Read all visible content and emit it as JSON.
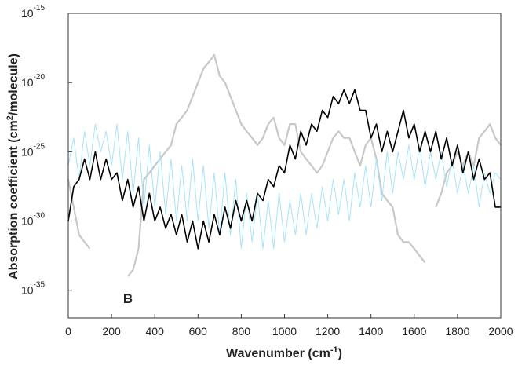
{
  "chart_data": {
    "type": "line",
    "xlabel": [
      "Wavenumber (cm",
      "-1",
      ")"
    ],
    "ylabel": [
      "Absorption coefficient (cm",
      "2",
      "/molecule)"
    ],
    "annotation": "B",
    "log_y": true,
    "xlim": [
      0,
      2000
    ],
    "ylim": [
      1e-37,
      1e-15
    ],
    "xticks": [
      0,
      200,
      400,
      600,
      800,
      1000,
      1200,
      1400,
      1600,
      1800,
      2000
    ],
    "yticks": [
      {
        "value": 1e-15,
        "label": "10",
        "exponent": "-15"
      },
      {
        "value": 1e-20,
        "label": "10",
        "exponent": "-20"
      },
      {
        "value": 1e-25,
        "label": "10",
        "exponent": "-25"
      },
      {
        "value": 1e-30,
        "label": "10",
        "exponent": "-30"
      },
      {
        "value": 1e-35,
        "label": "10",
        "exponent": "-35"
      }
    ],
    "x": [
      0,
      25,
      50,
      75,
      100,
      125,
      150,
      175,
      200,
      225,
      250,
      275,
      300,
      325,
      350,
      375,
      400,
      425,
      450,
      475,
      500,
      525,
      550,
      575,
      600,
      625,
      650,
      675,
      700,
      725,
      750,
      775,
      800,
      825,
      850,
      875,
      900,
      925,
      950,
      975,
      1000,
      1025,
      1050,
      1075,
      1100,
      1125,
      1150,
      1175,
      1200,
      1225,
      1250,
      1275,
      1300,
      1325,
      1350,
      1375,
      1400,
      1425,
      1450,
      1475,
      1500,
      1525,
      1550,
      1575,
      1600,
      1625,
      1650,
      1675,
      1700,
      1725,
      1750,
      1775,
      1800,
      1825,
      1850,
      1875,
      1900,
      1925,
      1950,
      1975,
      2000
    ],
    "series": [
      {
        "color": "#c8c8c8",
        "width": 2.2,
        "values": [
          1e-27,
          1e-29,
          1e-31,
          3e-32,
          1e-32,
          null,
          null,
          null,
          null,
          null,
          null,
          1e-34,
          3e-34,
          1e-32,
          1e-27,
          3e-27,
          1e-26,
          3e-26,
          1e-25,
          3e-25,
          1e-23,
          3e-23,
          1e-22,
          1e-21,
          1e-20,
          1e-19,
          3e-19,
          1e-18,
          3e-20,
          1e-20,
          1e-21,
          1e-22,
          1e-23,
          3e-24,
          1e-24,
          3e-25,
          1e-24,
          1e-23,
          3e-23,
          1e-24,
          3e-25,
          1e-23,
          1e-23,
          1e-25,
          3e-26,
          1e-26,
          3e-27,
          1e-26,
          1e-25,
          1e-24,
          3e-24,
          1e-24,
          1e-24,
          1e-25,
          1e-26,
          3e-25,
          1e-24,
          3e-26,
          1e-28,
          3e-29,
          1e-29,
          1e-31,
          3e-32,
          3e-32,
          1e-32,
          3e-33,
          1e-33,
          null,
          1e-29,
          1e-28,
          3e-27,
          1e-26,
          1e-25,
          1e-26,
          1e-25,
          1e-26,
          1e-24,
          3e-24,
          1e-23,
          1e-24,
          3e-25
        ]
      },
      {
        "color": "#a8e4f8",
        "width": 1,
        "values": [
          1e-26,
          1e-24,
          1e-27,
          3e-24,
          1e-26,
          1e-23,
          1e-25,
          3e-24,
          1e-26,
          1e-23,
          1e-27,
          3e-24,
          1e-28,
          1e-24,
          1e-29,
          3e-25,
          1e-29,
          1e-25,
          3e-30,
          3e-26,
          1e-30,
          1e-26,
          1e-30,
          3e-26,
          1e-30,
          1e-26,
          3e-31,
          3e-27,
          1e-31,
          3e-27,
          1e-31,
          1e-27,
          1e-32,
          1e-28,
          3e-32,
          1e-28,
          1e-32,
          3e-29,
          1e-32,
          1e-28,
          3e-32,
          3e-29,
          1e-31,
          1e-28,
          1e-31,
          1e-28,
          3e-31,
          3e-28,
          1e-30,
          1e-27,
          3e-30,
          1e-27,
          1e-30,
          3e-27,
          1e-29,
          1e-26,
          1e-29,
          3e-26,
          3e-29,
          1e-25,
          1e-28,
          1e-25,
          1e-27,
          3e-25,
          1e-27,
          3e-25,
          3e-28,
          1e-25,
          1e-27,
          1e-25,
          3e-28,
          3e-26,
          1e-28,
          1e-26,
          1e-28,
          1e-26,
          1e-29,
          3e-27,
          1e-28,
          3e-27,
          1e-27
        ]
      },
      {
        "color": "#000000",
        "width": 1.6,
        "values": [
          1e-30,
          3e-28,
          1e-27,
          3e-26,
          1e-27,
          1e-25,
          1e-27,
          3e-26,
          1e-27,
          3e-27,
          3e-29,
          1e-27,
          1e-29,
          3e-28,
          1e-30,
          1e-28,
          1e-30,
          1e-29,
          3e-31,
          3e-30,
          1e-31,
          3e-30,
          3e-32,
          1e-30,
          1e-32,
          1e-30,
          3e-32,
          3e-30,
          1e-31,
          1e-29,
          3e-31,
          3e-29,
          1e-30,
          3e-29,
          1e-30,
          1e-28,
          3e-29,
          1e-27,
          3e-28,
          1e-26,
          3e-27,
          3e-25,
          3e-26,
          3e-24,
          3e-25,
          1e-23,
          3e-24,
          1e-22,
          3e-23,
          1e-21,
          3e-22,
          3e-21,
          3e-22,
          3e-21,
          1e-22,
          1e-22,
          1e-24,
          1e-23,
          1e-25,
          3e-24,
          1e-25,
          3e-24,
          1e-22,
          1e-24,
          1e-23,
          1e-25,
          3e-24,
          1e-25,
          3e-24,
          3e-26,
          1e-24,
          1e-26,
          3e-25,
          3e-27,
          1e-25,
          1e-27,
          3e-26,
          1e-27,
          3e-27,
          1e-29,
          1e-29
        ]
      }
    ]
  }
}
